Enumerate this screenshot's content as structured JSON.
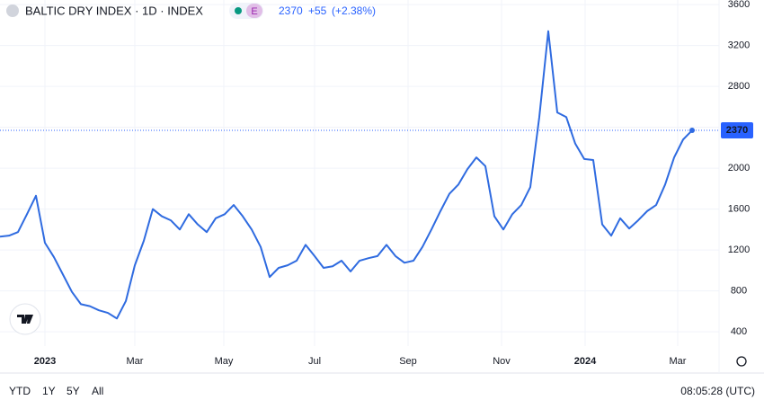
{
  "chart_data": {
    "type": "line",
    "title": "BALTIC DRY INDEX · 1D · INDEX",
    "exchange_badge": "E",
    "last_value": 2370,
    "change": "+55",
    "change_pct": "(+2.38%)",
    "series": [
      {
        "color": "#2f6be0",
        "values": [
          1330,
          1340,
          1375,
          1550,
          1730,
          1270,
          1130,
          960,
          790,
          670,
          650,
          610,
          585,
          530,
          700,
          1050,
          1290,
          1600,
          1530,
          1490,
          1400,
          1550,
          1450,
          1375,
          1510,
          1550,
          1640,
          1530,
          1400,
          1230,
          935,
          1025,
          1050,
          1095,
          1250,
          1140,
          1025,
          1040,
          1095,
          990,
          1095,
          1120,
          1140,
          1250,
          1140,
          1075,
          1095,
          1230,
          1400,
          1580,
          1750,
          1840,
          1990,
          2105,
          2020,
          1530,
          1400,
          1550,
          1640,
          1815,
          2500,
          3340,
          2545,
          2500,
          2240,
          2090,
          2080,
          1450,
          1340,
          1510,
          1410,
          1490,
          1580,
          1640,
          1840,
          2105,
          2280,
          2370
        ]
      }
    ],
    "ylim": [
      260,
      3645
    ],
    "yticks": [
      400,
      800,
      1200,
      1600,
      2000,
      2400,
      2800,
      3200,
      3600
    ],
    "xlim": [
      0,
      80
    ],
    "xticks": [
      {
        "value": 5,
        "label": "2023"
      },
      {
        "value": 15,
        "label": "Mar"
      },
      {
        "value": 24.9,
        "label": "May"
      },
      {
        "value": 35,
        "label": "Jul"
      },
      {
        "value": 45.4,
        "label": "Sep"
      },
      {
        "value": 55.8,
        "label": "Nov"
      },
      {
        "value": 65.1,
        "label": "2024"
      },
      {
        "value": 75.4,
        "label": "Mar"
      }
    ],
    "grid": true,
    "ranges": [
      "YTD",
      "1Y",
      "5Y",
      "All"
    ],
    "clock": "08:05:28 (UTC)"
  }
}
